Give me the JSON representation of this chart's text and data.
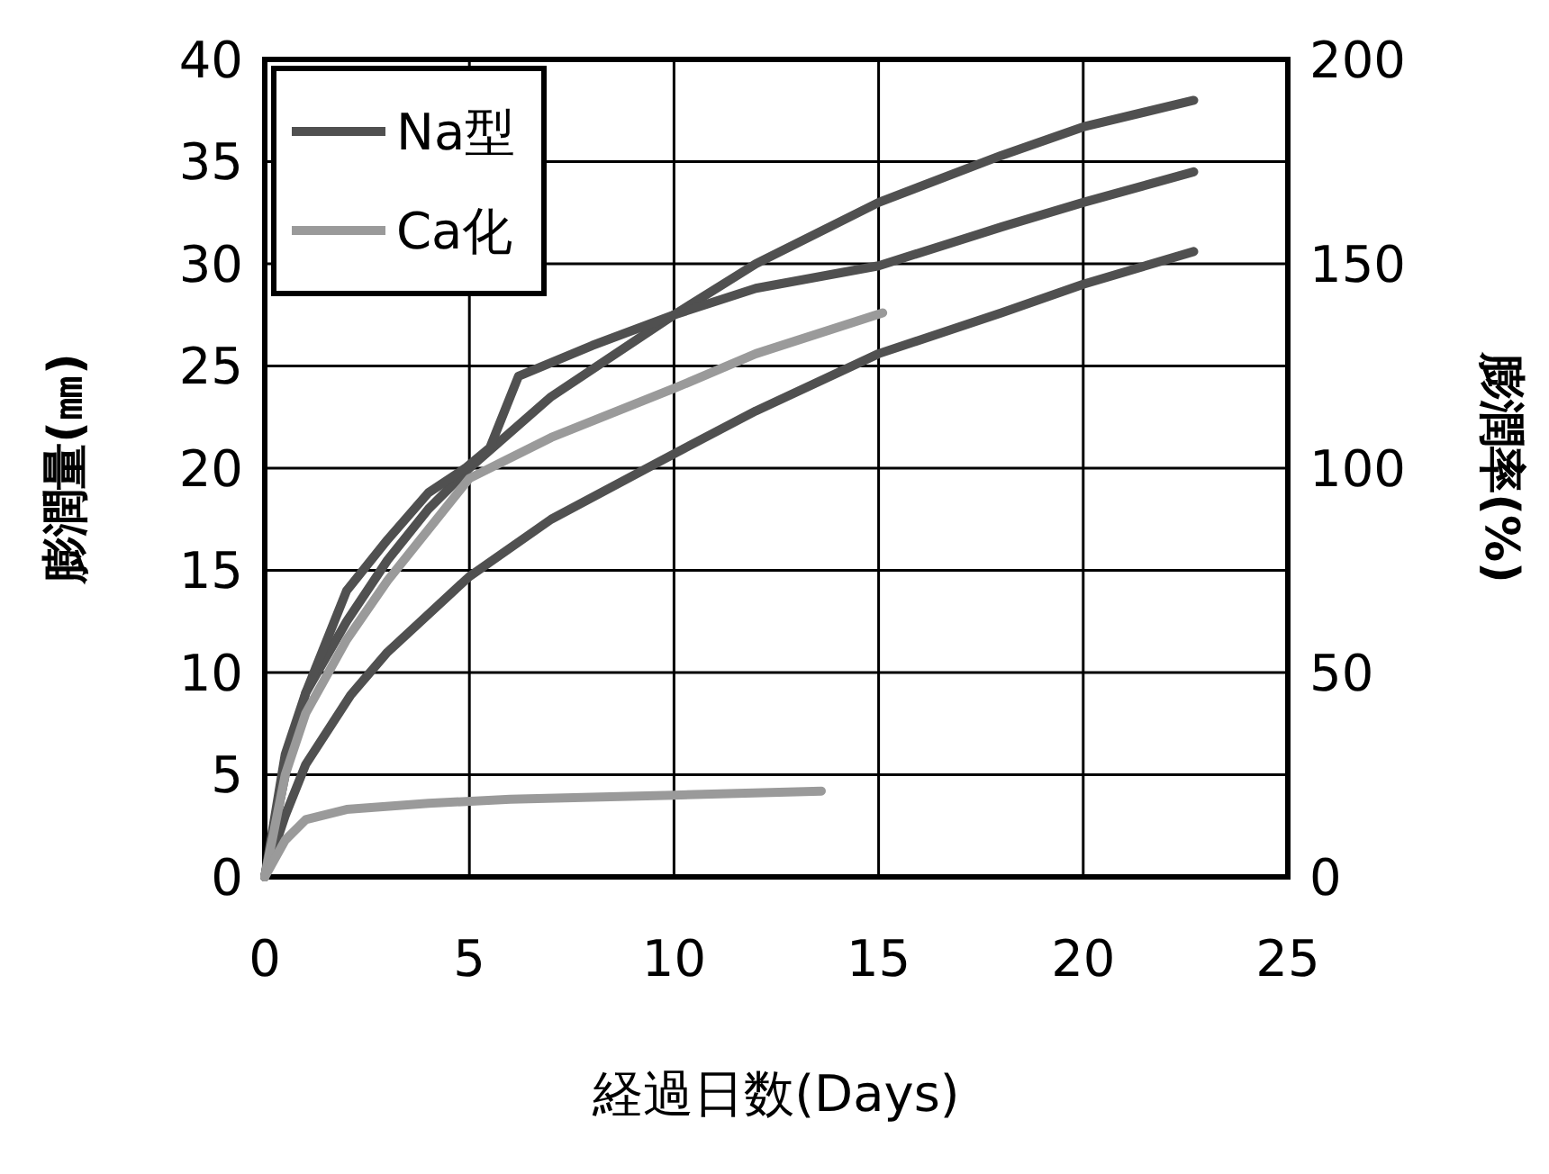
{
  "chart_data": {
    "type": "line",
    "xlabel": "経過日数(Days)",
    "ylabel": "膨潤量(㎜)",
    "y2label": "膨潤率(%)",
    "xlim": [
      0,
      25
    ],
    "xticks": [
      0,
      5,
      10,
      15,
      20,
      25
    ],
    "ylim": [
      0,
      40
    ],
    "yticks": [
      0,
      5,
      10,
      15,
      20,
      25,
      30,
      35,
      40
    ],
    "y2lim": [
      0,
      200
    ],
    "y2ticks": [
      0,
      50,
      100,
      150,
      200
    ],
    "grid": true,
    "legend": "top left",
    "line_style": "solid",
    "series": [
      {
        "name": "Na型",
        "color": "#505050",
        "x": [
          0,
          0.5,
          1,
          2,
          3,
          4,
          5,
          7,
          10,
          12,
          15,
          18,
          20,
          22.7
        ],
        "values": [
          0,
          6,
          9,
          12.5,
          15.5,
          18,
          20,
          23.5,
          27.5,
          30,
          33,
          35.3,
          36.7,
          38
        ]
      },
      {
        "color": "#505050",
        "x": [
          0,
          0.5,
          1,
          2,
          3,
          4,
          4.9,
          5.5,
          6.2,
          8,
          10,
          12,
          15,
          18,
          20,
          22.7
        ],
        "values": [
          0,
          5,
          9,
          14,
          16.5,
          18.8,
          20,
          21,
          24.5,
          26,
          27.5,
          28.8,
          29.9,
          31.8,
          33,
          34.5
        ]
      },
      {
        "color": "#505050",
        "x": [
          0,
          0.5,
          1,
          2.1,
          3,
          5,
          7,
          10,
          12,
          15,
          18,
          20,
          22.7
        ],
        "values": [
          0,
          3,
          5.5,
          8.9,
          11,
          14.7,
          17.5,
          20.7,
          22.8,
          25.6,
          27.6,
          29,
          30.6
        ]
      },
      {
        "name": "Ca化",
        "color": "#9a9a9a",
        "x": [
          0,
          0.5,
          1,
          2,
          3,
          5,
          7,
          10,
          12,
          15.1
        ],
        "values": [
          0,
          5,
          8,
          11.6,
          14.5,
          19.5,
          21.5,
          23.9,
          25.6,
          27.6
        ]
      },
      {
        "color": "#9a9a9a",
        "x": [
          0,
          0.5,
          1,
          2,
          4,
          6,
          8,
          10,
          13.6
        ],
        "values": [
          0,
          1.8,
          2.8,
          3.3,
          3.6,
          3.8,
          3.9,
          4,
          4.2
        ]
      }
    ]
  }
}
